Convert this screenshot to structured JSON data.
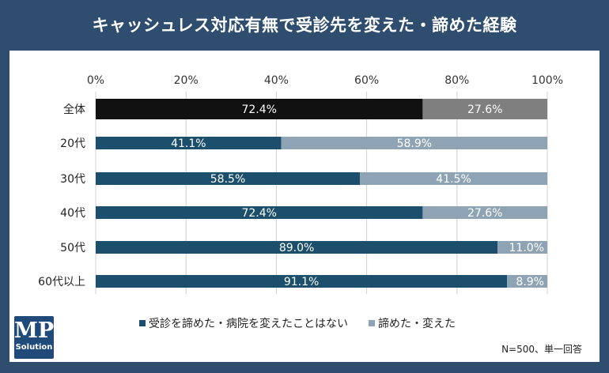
{
  "title": "キャッシュレス対応有無で受診先を変えた・諦めた経験",
  "note": "N=500、単一回答",
  "logo": {
    "main": "MP",
    "sub": "Solution"
  },
  "colors": {
    "background": "#2f4d6e",
    "panel": "#ffffff",
    "overall_primary": "#111111",
    "overall_secondary": "#7f7f7f",
    "primary": "#1b4f6c",
    "secondary": "#8ea4b5",
    "grid": "#d0d0d0",
    "text": "#222222"
  },
  "chart_data": {
    "type": "bar",
    "orientation": "horizontal",
    "stacked": "percent",
    "categories": [
      "全体",
      "20代",
      "30代",
      "40代",
      "50代",
      "60代以上"
    ],
    "series": [
      {
        "name": "受診を諦めた・病院を変えたことはない",
        "values": [
          72.4,
          41.1,
          58.5,
          72.4,
          89.0,
          91.1
        ]
      },
      {
        "name": "諦めた・変えた",
        "values": [
          27.6,
          58.9,
          41.5,
          27.6,
          11.0,
          8.9
        ]
      }
    ],
    "labels": [
      [
        "72.4%",
        "41.1%",
        "58.5%",
        "72.4%",
        "89.0%",
        "91.1%"
      ],
      [
        "27.6%",
        "58.9%",
        "41.5%",
        "27.6%",
        "11.0%",
        "8.9%"
      ]
    ],
    "xlim": [
      0,
      100
    ],
    "xticks": [
      0,
      20,
      40,
      60,
      80,
      100
    ],
    "xtick_labels": [
      "0%",
      "20%",
      "40%",
      "60%",
      "80%",
      "100%"
    ],
    "grid": true,
    "legend_position": "bottom"
  }
}
